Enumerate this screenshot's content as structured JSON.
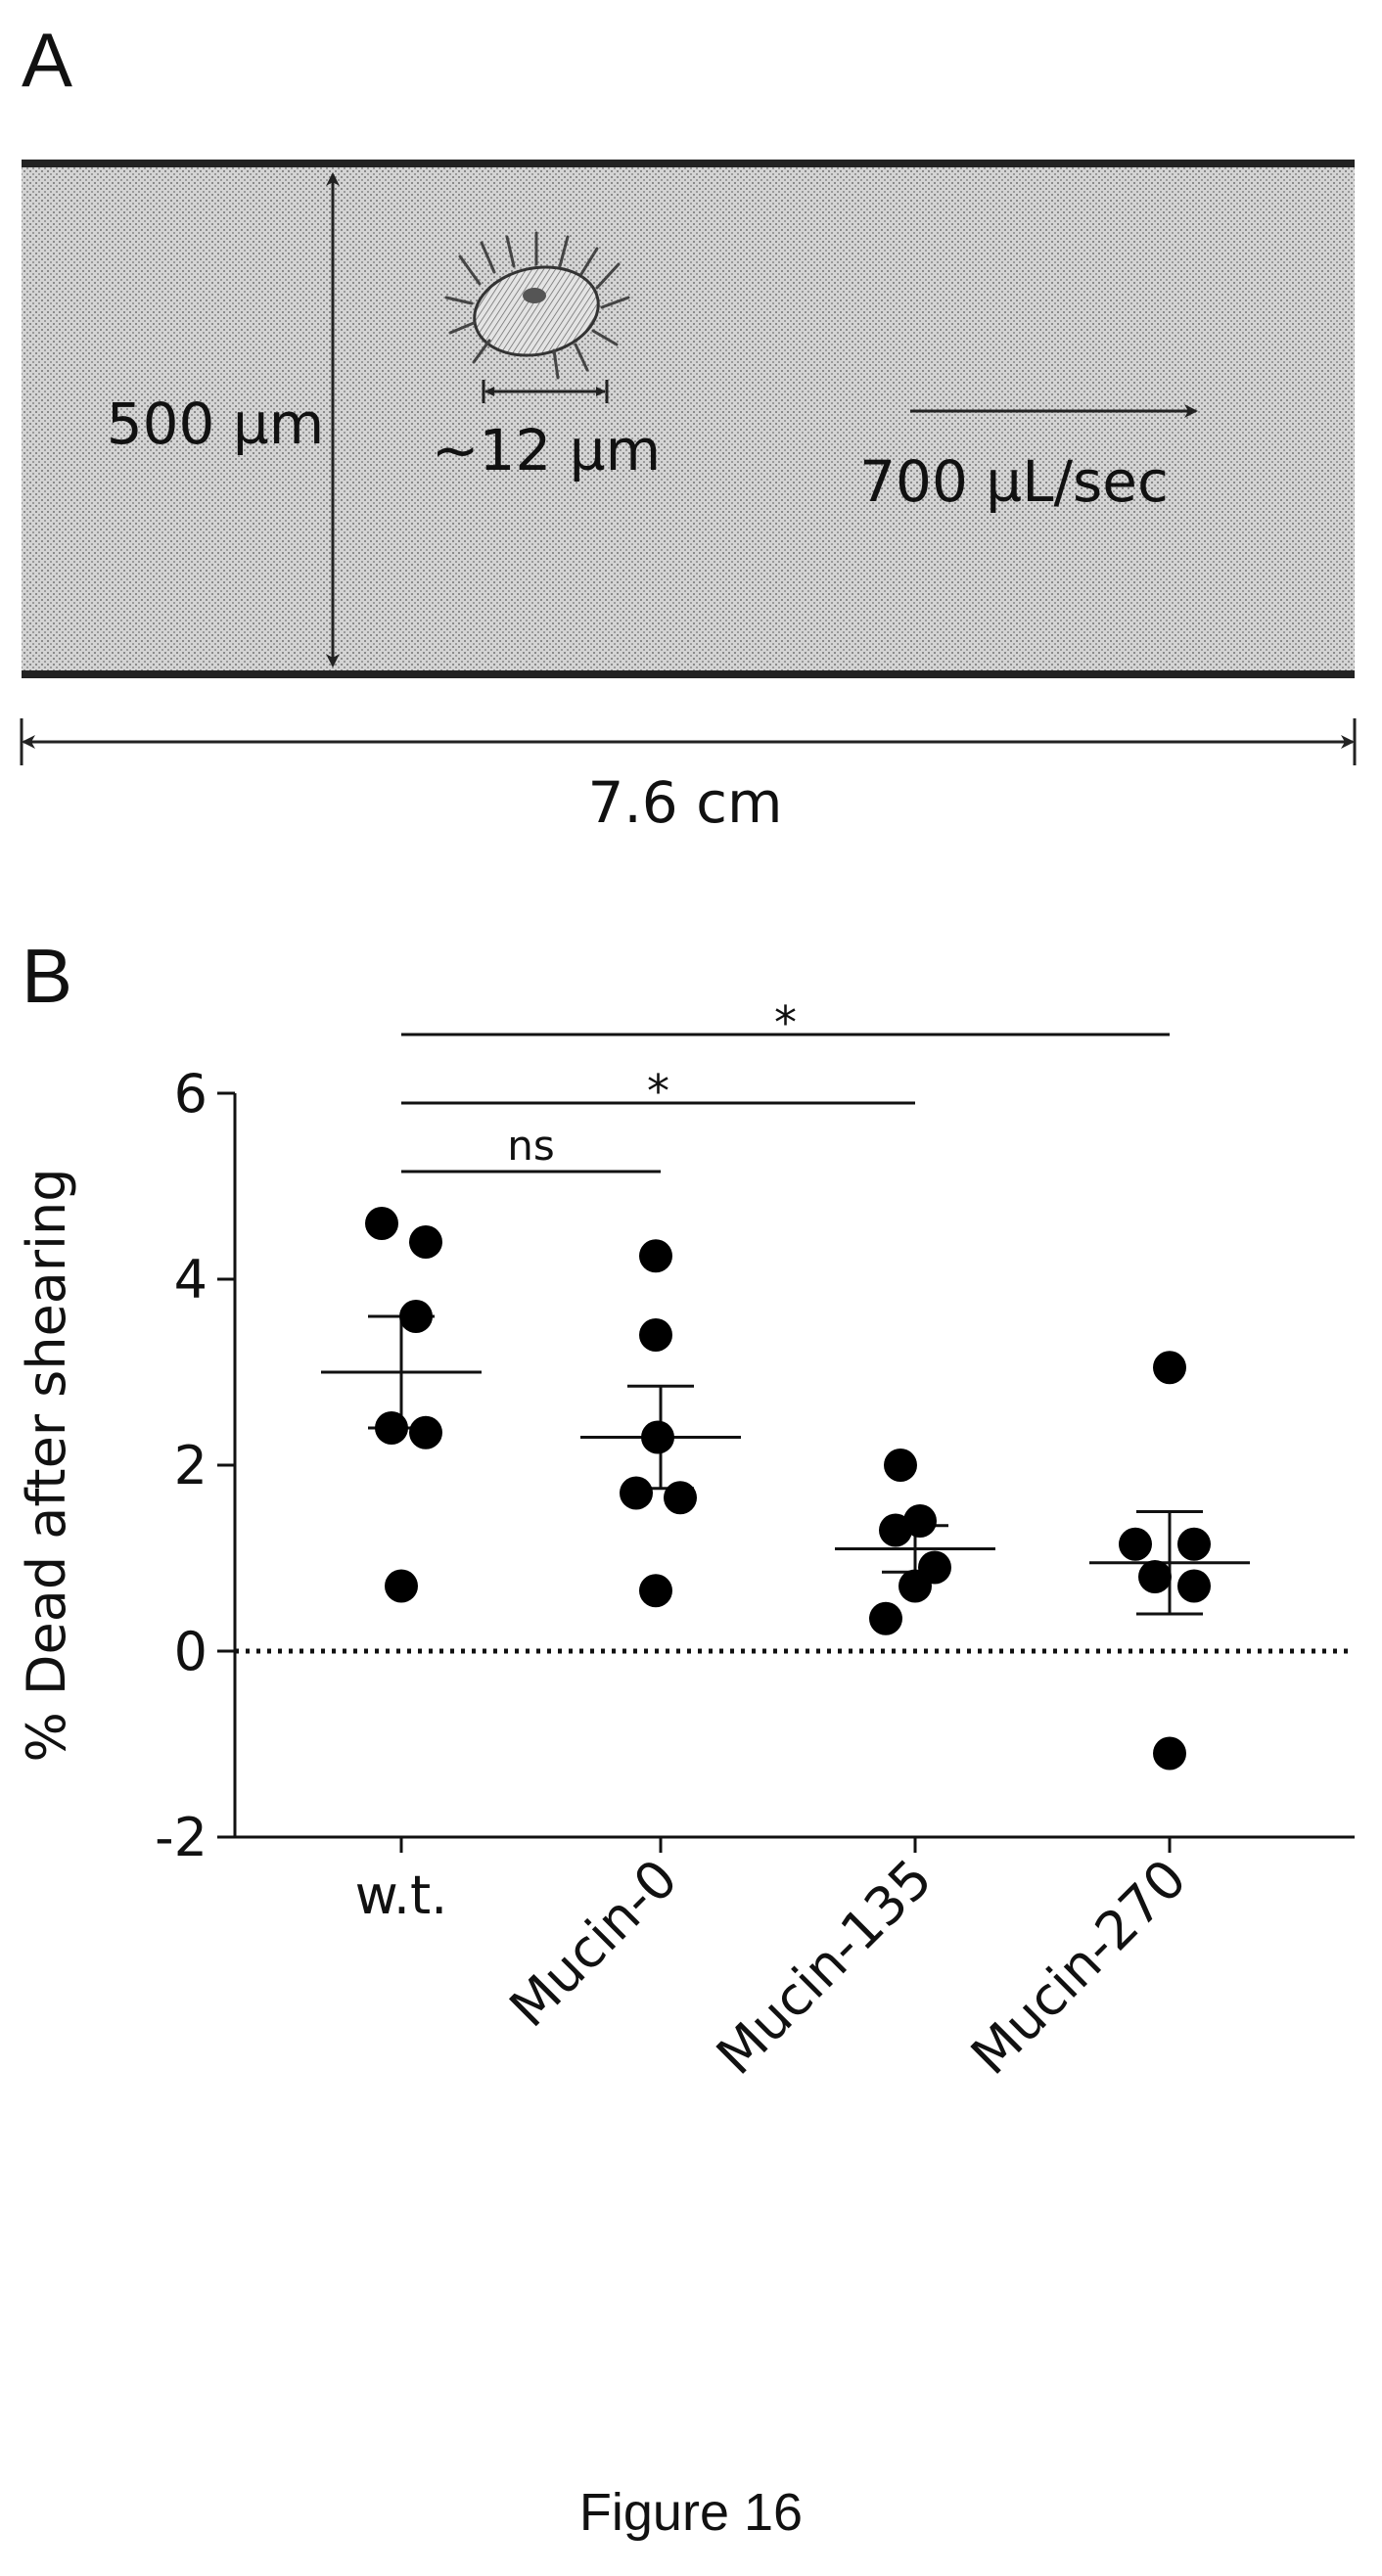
{
  "panel_a": {
    "label": "A",
    "channel_height_label": "500 µm",
    "cell_size_label": "~12 µm",
    "flow_rate_label": "700 µL/sec",
    "channel_length_label": "7.6 cm"
  },
  "panel_b": {
    "label": "B"
  },
  "chart_data": {
    "type": "scatter",
    "title": "",
    "xlabel": "",
    "ylabel": "% Dead after shearing",
    "categories": [
      "w.t.",
      "Mucin-0",
      "Mucin-135",
      "Mucin-270"
    ],
    "ylim": [
      -2,
      6
    ],
    "yticks": [
      -2,
      0,
      2,
      4,
      6
    ],
    "reference_line": {
      "y": 0,
      "style": "dotted"
    },
    "series": [
      {
        "category": "w.t.",
        "points": [
          4.6,
          4.4,
          3.6,
          2.4,
          2.35,
          0.7
        ],
        "mean": 3.0,
        "sem": [
          2.4,
          3.6
        ]
      },
      {
        "category": "Mucin-0",
        "points": [
          4.25,
          3.4,
          2.3,
          1.7,
          1.65,
          0.65
        ],
        "mean": 2.3,
        "sem": [
          1.75,
          2.85
        ]
      },
      {
        "category": "Mucin-135",
        "points": [
          2.0,
          1.4,
          1.3,
          0.9,
          0.7,
          0.35
        ],
        "mean": 1.1,
        "sem": [
          0.85,
          1.35
        ]
      },
      {
        "category": "Mucin-270",
        "points": [
          3.05,
          1.15,
          1.15,
          0.8,
          0.7,
          -1.1
        ],
        "mean": 0.95,
        "sem": [
          0.4,
          1.5
        ]
      }
    ],
    "significance": [
      {
        "from": "w.t.",
        "to": "Mucin-0",
        "label": "ns"
      },
      {
        "from": "w.t.",
        "to": "Mucin-135",
        "label": "*"
      },
      {
        "from": "w.t.",
        "to": "Mucin-270",
        "label": "*"
      }
    ],
    "grid": false,
    "legend": "none"
  },
  "caption": "Figure 16"
}
